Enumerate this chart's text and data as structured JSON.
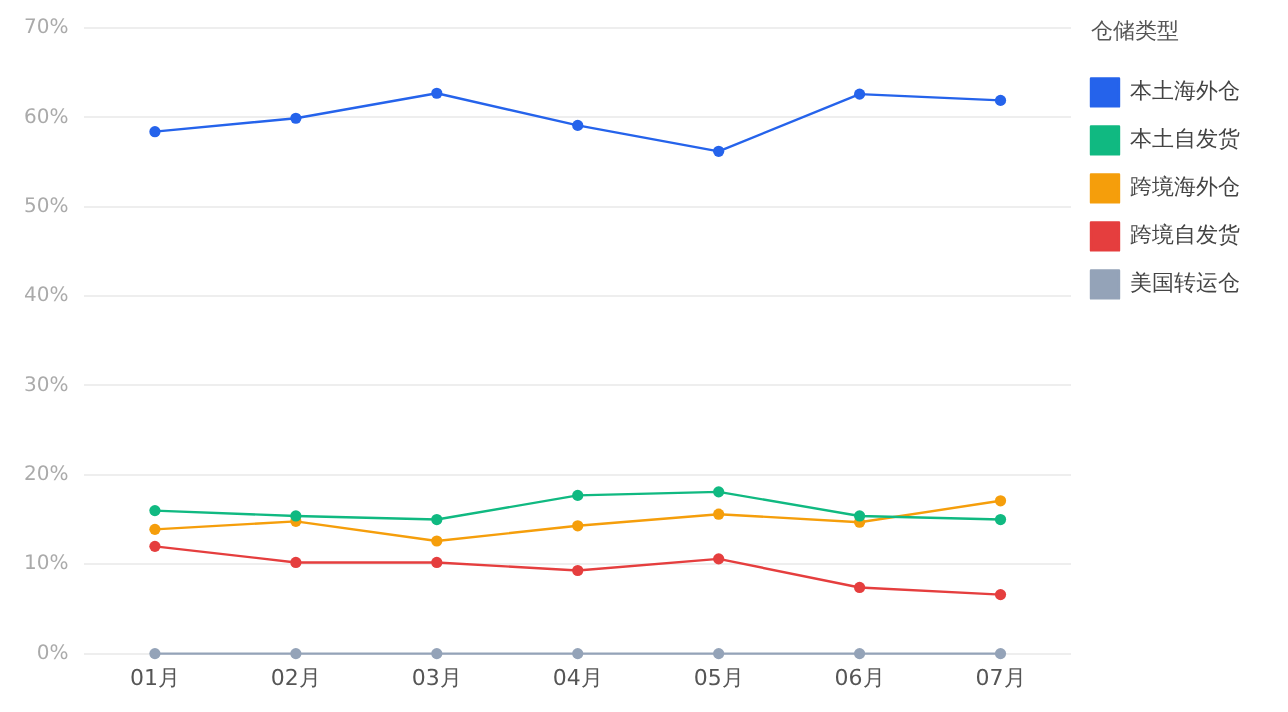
{
  "chart_data": {
    "type": "line",
    "legend_title": "仓储类型",
    "categories": [
      "01月",
      "02月",
      "03月",
      "04月",
      "05月",
      "06月",
      "07月"
    ],
    "series": [
      {
        "name": "本土海外仓",
        "color": "#2563eb",
        "values": [
          58.4,
          59.9,
          62.7,
          59.1,
          56.2,
          62.6,
          61.9
        ]
      },
      {
        "name": "本土自发货",
        "color": "#10b981",
        "values": [
          16.0,
          15.4,
          15.0,
          17.7,
          18.1,
          15.4,
          15.0
        ]
      },
      {
        "name": "跨境海外仓",
        "color": "#f59e0b",
        "values": [
          13.9,
          14.8,
          12.6,
          14.3,
          15.6,
          14.7,
          17.1
        ]
      },
      {
        "name": "跨境自发货",
        "color": "#e53e3e",
        "values": [
          12.0,
          10.2,
          10.2,
          9.3,
          10.6,
          7.4,
          6.6
        ]
      },
      {
        "name": "美国转运仓",
        "color": "#94a3b8",
        "values": [
          0,
          0,
          0,
          0,
          0,
          0,
          0
        ]
      }
    ],
    "ylim": [
      0,
      70
    ],
    "yticks": [
      {
        "value": 0,
        "label": "0%"
      },
      {
        "value": 10,
        "label": "10%"
      },
      {
        "value": 20,
        "label": "20%"
      },
      {
        "value": 30,
        "label": "30%"
      },
      {
        "value": 40,
        "label": "40%"
      },
      {
        "value": 50,
        "label": "50%"
      },
      {
        "value": 60,
        "label": "60%"
      },
      {
        "value": 70,
        "label": "70%"
      }
    ],
    "grid": "y",
    "legend": "top right",
    "marker": "circle",
    "line_style": "solid"
  }
}
